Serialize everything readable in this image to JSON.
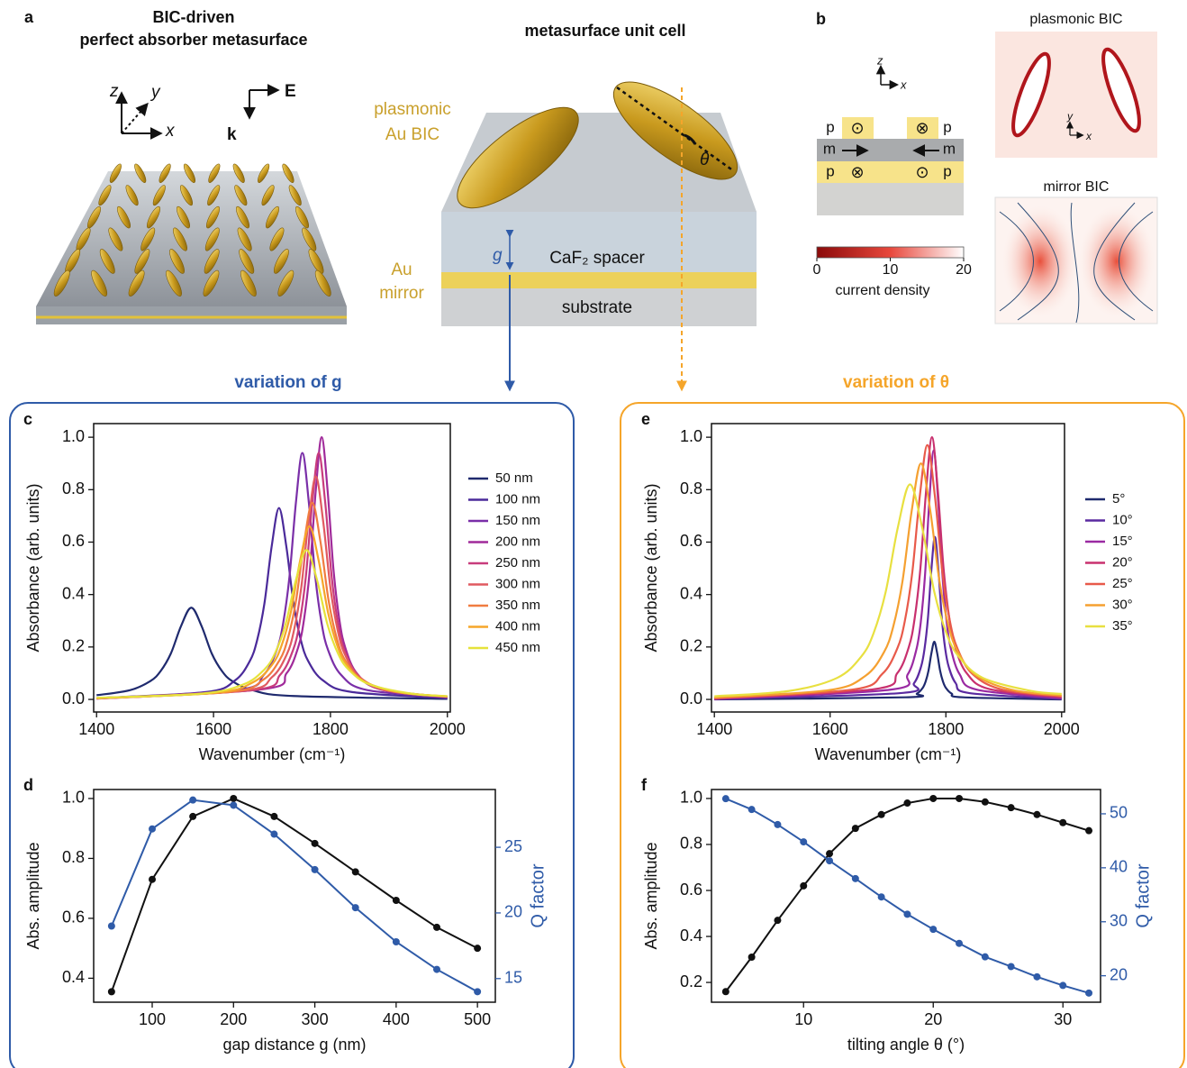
{
  "panel_a": {
    "label": "a",
    "title": [
      "BIC-driven",
      "perfect absorber metasurface"
    ],
    "axes": [
      "z",
      "y",
      "x"
    ],
    "field": [
      "E",
      "k"
    ]
  },
  "unit_cell": {
    "title": "metasurface unit cell",
    "plasmonic": [
      "plasmonic",
      "Au BIC"
    ],
    "mirror": [
      "Au",
      "mirror"
    ],
    "spacer": "CaF₂ spacer",
    "substrate": "substrate",
    "gap": "g",
    "angle": "θ"
  },
  "panel_b": {
    "label": "b",
    "axes": [
      "z",
      "x"
    ],
    "moments": {
      "p": "p",
      "m": "m",
      "out": "⊙",
      "in": "⊗"
    },
    "plasmonic_title": "plasmonic BIC",
    "mirror_title": "mirror BIC",
    "inset_axes": [
      "y",
      "x"
    ],
    "colorbar": {
      "lim": [
        0,
        20
      ],
      "ticks": [
        0,
        10,
        20
      ],
      "label": "current density",
      "colors": [
        "#8b0a0a",
        "#e8483c",
        "#ffffff"
      ]
    }
  },
  "variations": {
    "g": "variation of g",
    "theta": "variation of θ",
    "g_color": "#2f5ba8",
    "theta_color": "#f5a52a"
  },
  "chart_data": [
    {
      "type": "line",
      "panel_label": "c",
      "smooth": true,
      "xlabel": "Wavenumber (cm⁻¹)",
      "ylabel": "Absorbance (arb. units)",
      "xlim": [
        1395,
        2005
      ],
      "xticks": [
        1400,
        1600,
        1800,
        2000
      ],
      "ylim": [
        -0.048,
        1.052
      ],
      "yticks": [
        {
          "value": 0,
          "label": "0.0"
        },
        0.2,
        0.4,
        0.6,
        0.8,
        {
          "value": 1,
          "label": "1.0"
        }
      ],
      "legend": "right",
      "series": [
        {
          "name": "50 nm",
          "color": "#1f2a6e",
          "x": [
            1400,
            1457,
            1492,
            1509.5,
            1527,
            1544.5,
            1562,
            1579.5,
            1597,
            1614.5,
            1632,
            1667,
            1737,
            2000
          ],
          "values": [
            0.016,
            0.035,
            0.07,
            0.108,
            0.175,
            0.28,
            0.35,
            0.28,
            0.175,
            0.108,
            0.07,
            0.035,
            0.013,
            0.002
          ]
        },
        {
          "name": "100 nm",
          "color": "#4a2a9a",
          "x": [
            1400,
            1587,
            1637,
            1662,
            1674.5,
            1687,
            1699.5,
            1712,
            1724.5,
            1737,
            1749.5,
            1762,
            1787,
            1837,
            2000
          ],
          "values": [
            0.005,
            0.028,
            0.073,
            0.146,
            0.225,
            0.365,
            0.584,
            0.73,
            0.584,
            0.365,
            0.225,
            0.146,
            0.073,
            0.028,
            0.005
          ]
        },
        {
          "name": "150 nm",
          "color": "#7a2fa8",
          "x": [
            1400,
            1642,
            1686,
            1708,
            1719,
            1730,
            1741,
            1752,
            1763,
            1774,
            1785,
            1796,
            1818,
            1862,
            2000
          ],
          "values": [
            0.004,
            0.036,
            0.094,
            0.188,
            0.289,
            0.47,
            0.752,
            0.94,
            0.752,
            0.47,
            0.289,
            0.188,
            0.094,
            0.036,
            0.007
          ]
        },
        {
          "name": "200 nm",
          "color": "#a02a9a",
          "x": [
            1400,
            1685,
            1725,
            1745,
            1755,
            1765,
            1775,
            1785,
            1795,
            1805,
            1815,
            1825,
            1845,
            1885,
            2000
          ],
          "values": [
            0.003,
            0.039,
            0.1,
            0.2,
            0.308,
            0.5,
            0.8,
            1.0,
            0.8,
            0.5,
            0.308,
            0.2,
            0.1,
            0.039,
            0.009
          ]
        },
        {
          "name": "250 nm",
          "color": "#c83c7c",
          "x": [
            1400,
            1670,
            1714,
            1736,
            1747,
            1758,
            1769,
            1780,
            1791,
            1802,
            1813,
            1824,
            1846,
            1890,
            2000
          ],
          "values": [
            0.003,
            0.036,
            0.094,
            0.188,
            0.289,
            0.47,
            0.752,
            0.94,
            0.752,
            0.47,
            0.289,
            0.188,
            0.094,
            0.036,
            0.009
          ]
        },
        {
          "name": "300 nm",
          "color": "#e05a60",
          "x": [
            1400,
            1650,
            1700,
            1725,
            1737.5,
            1750,
            1762.5,
            1775,
            1787.5,
            1800,
            1812.5,
            1825,
            1850,
            1900,
            2000
          ],
          "values": [
            0.004,
            0.033,
            0.085,
            0.17,
            0.262,
            0.425,
            0.68,
            0.85,
            0.68,
            0.425,
            0.262,
            0.17,
            0.085,
            0.033,
            0.01
          ]
        },
        {
          "name": "350 nm",
          "color": "#f07c40",
          "x": [
            1400,
            1629,
            1685,
            1713,
            1727,
            1741,
            1755,
            1769,
            1783,
            1797,
            1811,
            1825,
            1853,
            1909,
            2000
          ],
          "values": [
            0.004,
            0.029,
            0.075,
            0.15,
            0.231,
            0.375,
            0.6,
            0.75,
            0.6,
            0.375,
            0.231,
            0.15,
            0.075,
            0.029,
            0.011
          ]
        },
        {
          "name": "400 nm",
          "color": "#f6a62a",
          "x": [
            1400,
            1604,
            1668,
            1700,
            1716,
            1732,
            1748,
            1764,
            1780,
            1796,
            1812,
            1828,
            1860,
            1924,
            2000
          ],
          "values": [
            0.005,
            0.025,
            0.066,
            0.132,
            0.203,
            0.33,
            0.528,
            0.66,
            0.528,
            0.33,
            0.203,
            0.132,
            0.066,
            0.025,
            0.012
          ]
        },
        {
          "name": "450 nm",
          "color": "#e6e23a",
          "x": [
            1400,
            1579,
            1651,
            1687,
            1705,
            1723,
            1741,
            1759,
            1777,
            1795,
            1813,
            1831,
            1867,
            1939,
            2000
          ],
          "values": [
            0.006,
            0.022,
            0.057,
            0.114,
            0.175,
            0.285,
            0.456,
            0.57,
            0.456,
            0.285,
            0.175,
            0.114,
            0.057,
            0.022,
            0.012
          ]
        }
      ]
    },
    {
      "type": "line",
      "panel_label": "d",
      "markers": true,
      "xlabel": "gap distance g (nm)",
      "ylabel": "Abs. amplitude",
      "y2label": "Q factor",
      "x": [
        50,
        100,
        150,
        200,
        250,
        300,
        350,
        400,
        450,
        500
      ],
      "xlim": [
        28,
        522
      ],
      "xticks": [
        100,
        200,
        300,
        400,
        500
      ],
      "ylim": [
        0.32,
        1.03
      ],
      "yticks": [
        0.4,
        0.6,
        0.8,
        {
          "value": 1,
          "label": "1.0"
        }
      ],
      "y2lim": [
        13.2,
        29.4
      ],
      "y2ticks": [
        15,
        20,
        25
      ],
      "series": [
        {
          "name": "Abs. amplitude",
          "color": "#111111",
          "values": [
            0.355,
            0.73,
            0.94,
            1.0,
            0.94,
            0.85,
            0.755,
            0.66,
            0.57,
            0.5
          ]
        },
        {
          "name": "Q factor",
          "color": "#2f5ba8",
          "axis": "y2",
          "values": [
            19.0,
            26.4,
            28.6,
            28.2,
            26.0,
            23.3,
            20.4,
            17.8,
            15.7,
            14.0
          ]
        }
      ]
    },
    {
      "type": "line",
      "panel_label": "e",
      "smooth": true,
      "xlabel": "Wavenumber (cm⁻¹)",
      "ylabel": "Absorbance (arb. units)",
      "xlim": [
        1395,
        2005
      ],
      "xticks": [
        1400,
        1600,
        1800,
        2000
      ],
      "ylim": [
        -0.048,
        1.052
      ],
      "yticks": [
        {
          "value": 0,
          "label": "0.0"
        },
        0.2,
        0.4,
        0.6,
        0.8,
        {
          "value": 1,
          "label": "1.0"
        }
      ],
      "legend": "right",
      "series": [
        {
          "name": "5°",
          "color": "#1f2a6e",
          "x": [
            1400,
            1730,
            1750,
            1760,
            1765,
            1770,
            1775,
            1780,
            1785,
            1790,
            1795,
            1800,
            1810,
            1830,
            2000
          ],
          "values": [
            0,
            0.008,
            0.022,
            0.044,
            0.068,
            0.11,
            0.176,
            0.22,
            0.176,
            0.11,
            0.068,
            0.044,
            0.022,
            0.008,
            0
          ]
        },
        {
          "name": "10°",
          "color": "#5a2aa0",
          "x": [
            1400,
            1721,
            1745,
            1757,
            1763,
            1769,
            1775,
            1781,
            1787,
            1793,
            1799,
            1805,
            1817,
            1841,
            2000
          ],
          "values": [
            0.001,
            0.024,
            0.062,
            0.124,
            0.191,
            0.31,
            0.496,
            0.62,
            0.496,
            0.31,
            0.191,
            0.124,
            0.062,
            0.024,
            0.002
          ]
        },
        {
          "name": "15°",
          "color": "#9a2aa2",
          "x": [
            1400,
            1704,
            1734,
            1749,
            1756.5,
            1764,
            1771.5,
            1779,
            1786.5,
            1794,
            1801.5,
            1809,
            1824,
            1854,
            2000
          ],
          "values": [
            0.001,
            0.037,
            0.095,
            0.19,
            0.292,
            0.475,
            0.76,
            0.95,
            0.76,
            0.475,
            0.292,
            0.19,
            0.095,
            0.037,
            0.004
          ]
        },
        {
          "name": "20°",
          "color": "#c8306e",
          "x": [
            1400,
            1676,
            1716,
            1736,
            1746,
            1756,
            1766,
            1776,
            1786,
            1796,
            1806,
            1816,
            1836,
            1876,
            2000
          ],
          "values": [
            0.003,
            0.039,
            0.1,
            0.2,
            0.308,
            0.5,
            0.8,
            1.0,
            0.8,
            0.5,
            0.308,
            0.2,
            0.1,
            0.039,
            0.008
          ]
        },
        {
          "name": "25°",
          "color": "#e85a4a",
          "x": [
            1400,
            1638,
            1690,
            1716,
            1729,
            1742,
            1755,
            1768,
            1781,
            1794,
            1807,
            1820,
            1846,
            1898,
            2000
          ],
          "values": [
            0.005,
            0.037,
            0.097,
            0.194,
            0.298,
            0.485,
            0.776,
            0.97,
            0.776,
            0.485,
            0.298,
            0.194,
            0.097,
            0.037,
            0.012
          ]
        },
        {
          "name": "30°",
          "color": "#f5a030",
          "x": [
            1400,
            1597,
            1661,
            1693,
            1709,
            1725,
            1741,
            1757,
            1773,
            1789,
            1805,
            1821,
            1853,
            1917,
            2000
          ],
          "values": [
            0.007,
            0.035,
            0.09,
            0.18,
            0.277,
            0.45,
            0.72,
            0.9,
            0.72,
            0.45,
            0.277,
            0.18,
            0.09,
            0.035,
            0.015
          ]
        },
        {
          "name": "35°",
          "color": "#e8e040",
          "x": [
            1400,
            1528,
            1612,
            1654,
            1675,
            1696,
            1717,
            1738,
            1759,
            1780,
            1801,
            1822,
            1864,
            1948,
            2000
          ],
          "values": [
            0.012,
            0.032,
            0.082,
            0.164,
            0.252,
            0.41,
            0.656,
            0.82,
            0.656,
            0.41,
            0.252,
            0.164,
            0.082,
            0.032,
            0.021
          ]
        }
      ]
    },
    {
      "type": "line",
      "panel_label": "f",
      "markers": true,
      "xlabel": "tilting angle θ (°)",
      "ylabel": "Abs. amplitude",
      "y2label": "Q factor",
      "x": [
        4,
        6,
        8,
        10,
        12,
        14,
        16,
        18,
        20,
        22,
        24,
        26,
        28,
        30,
        32
      ],
      "xlim": [
        2.9,
        32.9
      ],
      "xticks": [
        10,
        20,
        30
      ],
      "ylim": [
        0.114,
        1.039
      ],
      "yticks": [
        0.2,
        0.4,
        0.6,
        0.8,
        {
          "value": 1,
          "label": "1.0"
        }
      ],
      "y2lim": [
        15.1,
        54.5
      ],
      "y2ticks": [
        20,
        30,
        40,
        50
      ],
      "series": [
        {
          "name": "Abs. amplitude",
          "color": "#111111",
          "values": [
            0.16,
            0.31,
            0.47,
            0.62,
            0.76,
            0.87,
            0.93,
            0.98,
            1.0,
            1.0,
            0.985,
            0.96,
            0.93,
            0.895,
            0.86
          ]
        },
        {
          "name": "Q factor",
          "color": "#2f5ba8",
          "axis": "y2",
          "values": [
            52.8,
            50.8,
            48.0,
            44.8,
            41.3,
            38.0,
            34.6,
            31.4,
            28.6,
            26.0,
            23.5,
            21.7,
            19.8,
            18.2,
            16.8
          ]
        }
      ]
    }
  ]
}
